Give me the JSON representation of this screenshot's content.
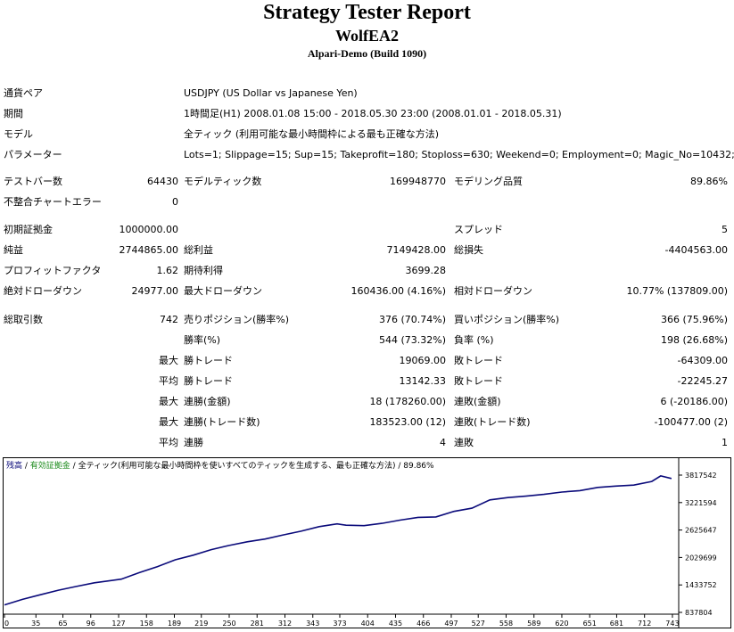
{
  "report": {
    "title": "Strategy Tester Report",
    "ea_name": "WolfEA2",
    "server": "Alpari-Demo (Build 1090)"
  },
  "info": {
    "symbol_label": "通貨ペア",
    "symbol_value": "USDJPY (US Dollar vs Japanese Yen)",
    "period_label": "期間",
    "period_value": "1時間足(H1) 2008.01.08 15:00 - 2018.05.30 23:00 (2008.01.01 - 2018.05.31)",
    "model_label": "モデル",
    "model_value": "全ティック (利用可能な最小時間枠による最も正確な方法)",
    "params_label": "パラメーター",
    "params_value": "Lots=1; Slippage=15; Sup=15; Takeprofit=180; Stoploss=630; Weekend=0; Employment=0; Magic_No=10432;"
  },
  "stats": {
    "bars_label": "テストバー数",
    "bars_value": "64430",
    "ticks_label": "モデルティック数",
    "ticks_value": "169948770",
    "quality_label": "モデリング品質",
    "quality_value": "89.86%",
    "mismatch_label": "不整合チャートエラー",
    "mismatch_value": "0",
    "deposit_label": "初期証拠金",
    "deposit_value": "1000000.00",
    "spread_label": "スプレッド",
    "spread_value": "5",
    "net_label": "純益",
    "net_value": "2744865.00",
    "gross_profit_label": "総利益",
    "gross_profit_value": "7149428.00",
    "gross_loss_label": "総損失",
    "gross_loss_value": "-4404563.00",
    "pf_label": "プロフィットファクタ",
    "pf_value": "1.62",
    "expected_label": "期待利得",
    "expected_value": "3699.28",
    "abs_dd_label": "絶対ドローダウン",
    "abs_dd_value": "24977.00",
    "max_dd_label": "最大ドローダウン",
    "max_dd_value": "160436.00 (4.16%)",
    "rel_dd_label": "相対ドローダウン",
    "rel_dd_value": "10.77% (137809.00)",
    "trades_label": "総取引数",
    "trades_value": "742",
    "short_label": "売りポジション(勝率%)",
    "short_value": "376 (70.74%)",
    "long_label": "買いポジション(勝率%)",
    "long_value": "366 (75.96%)",
    "win_label": "勝率(%)",
    "win_value": "544 (73.32%)",
    "loss_label": "負率 (%)",
    "loss_value": "198 (26.68%)",
    "max_word": "最大",
    "avg_word": "平均",
    "win_trade_label": "勝トレード",
    "lose_trade_label": "敗トレード",
    "max_win_trade": "19069.00",
    "max_lose_trade": "-64309.00",
    "avg_win_trade": "13142.33",
    "avg_lose_trade": "-22245.27",
    "cons_win_amt_label": "連勝(金額)",
    "cons_win_amt_value": "18 (178260.00)",
    "cons_loss_amt_label": "連敗(金額)",
    "cons_loss_amt_value": "6 (-20186.00)",
    "cons_win_cnt_label": "連勝(トレード数)",
    "cons_win_cnt_value": "183523.00 (12)",
    "cons_loss_cnt_label": "連敗(トレード数)",
    "cons_loss_cnt_value": "-100477.00 (2)",
    "avg_cons_win_label": "連勝",
    "avg_cons_win_value": "4",
    "avg_cons_loss_label": "連敗",
    "avg_cons_loss_value": "1"
  },
  "chart_legend": {
    "balance": "残高",
    "separator1": " / ",
    "equity": "有効証拠金",
    "separator2": " / ",
    "description": "全ティック(利用可能な最小時間枠を使いすべてのティックを生成する、最も正確な方法) / 89.86%"
  },
  "chart_data": {
    "type": "line",
    "series": [
      {
        "name": "残高",
        "color": "#0a0a7a",
        "x": [
          0,
          20,
          40,
          60,
          80,
          100,
          130,
          150,
          170,
          190,
          210,
          230,
          250,
          270,
          290,
          310,
          330,
          350,
          370,
          380,
          400,
          420,
          440,
          460,
          480,
          500,
          520,
          540,
          560,
          580,
          600,
          620,
          640,
          660,
          680,
          700,
          720,
          730,
          742
        ],
        "y": [
          1000000,
          1120000,
          1220000,
          1320000,
          1400000,
          1480000,
          1560000,
          1700000,
          1830000,
          1980000,
          2080000,
          2200000,
          2290000,
          2370000,
          2430000,
          2520000,
          2600000,
          2700000,
          2760000,
          2730000,
          2720000,
          2770000,
          2840000,
          2900000,
          2910000,
          3030000,
          3100000,
          3280000,
          3330000,
          3360000,
          3400000,
          3450000,
          3480000,
          3550000,
          3580000,
          3600000,
          3680000,
          3800000,
          3744865
        ]
      }
    ],
    "x_ticks": [
      0,
      35,
      65,
      96,
      127,
      158,
      189,
      219,
      250,
      281,
      312,
      343,
      373,
      404,
      435,
      466,
      497,
      527,
      558,
      589,
      620,
      651,
      681,
      712,
      743
    ],
    "y_ticks": [
      "3817542",
      "3221594",
      "2625647",
      "2029699",
      "1433752",
      "837804"
    ],
    "y_values": [
      3817542,
      3221594,
      2625647,
      2029699,
      1433752,
      837804
    ],
    "xlim": [
      0,
      750
    ],
    "ylim": [
      837804,
      3817542
    ],
    "legend_placement": "top-left",
    "grid": false
  }
}
